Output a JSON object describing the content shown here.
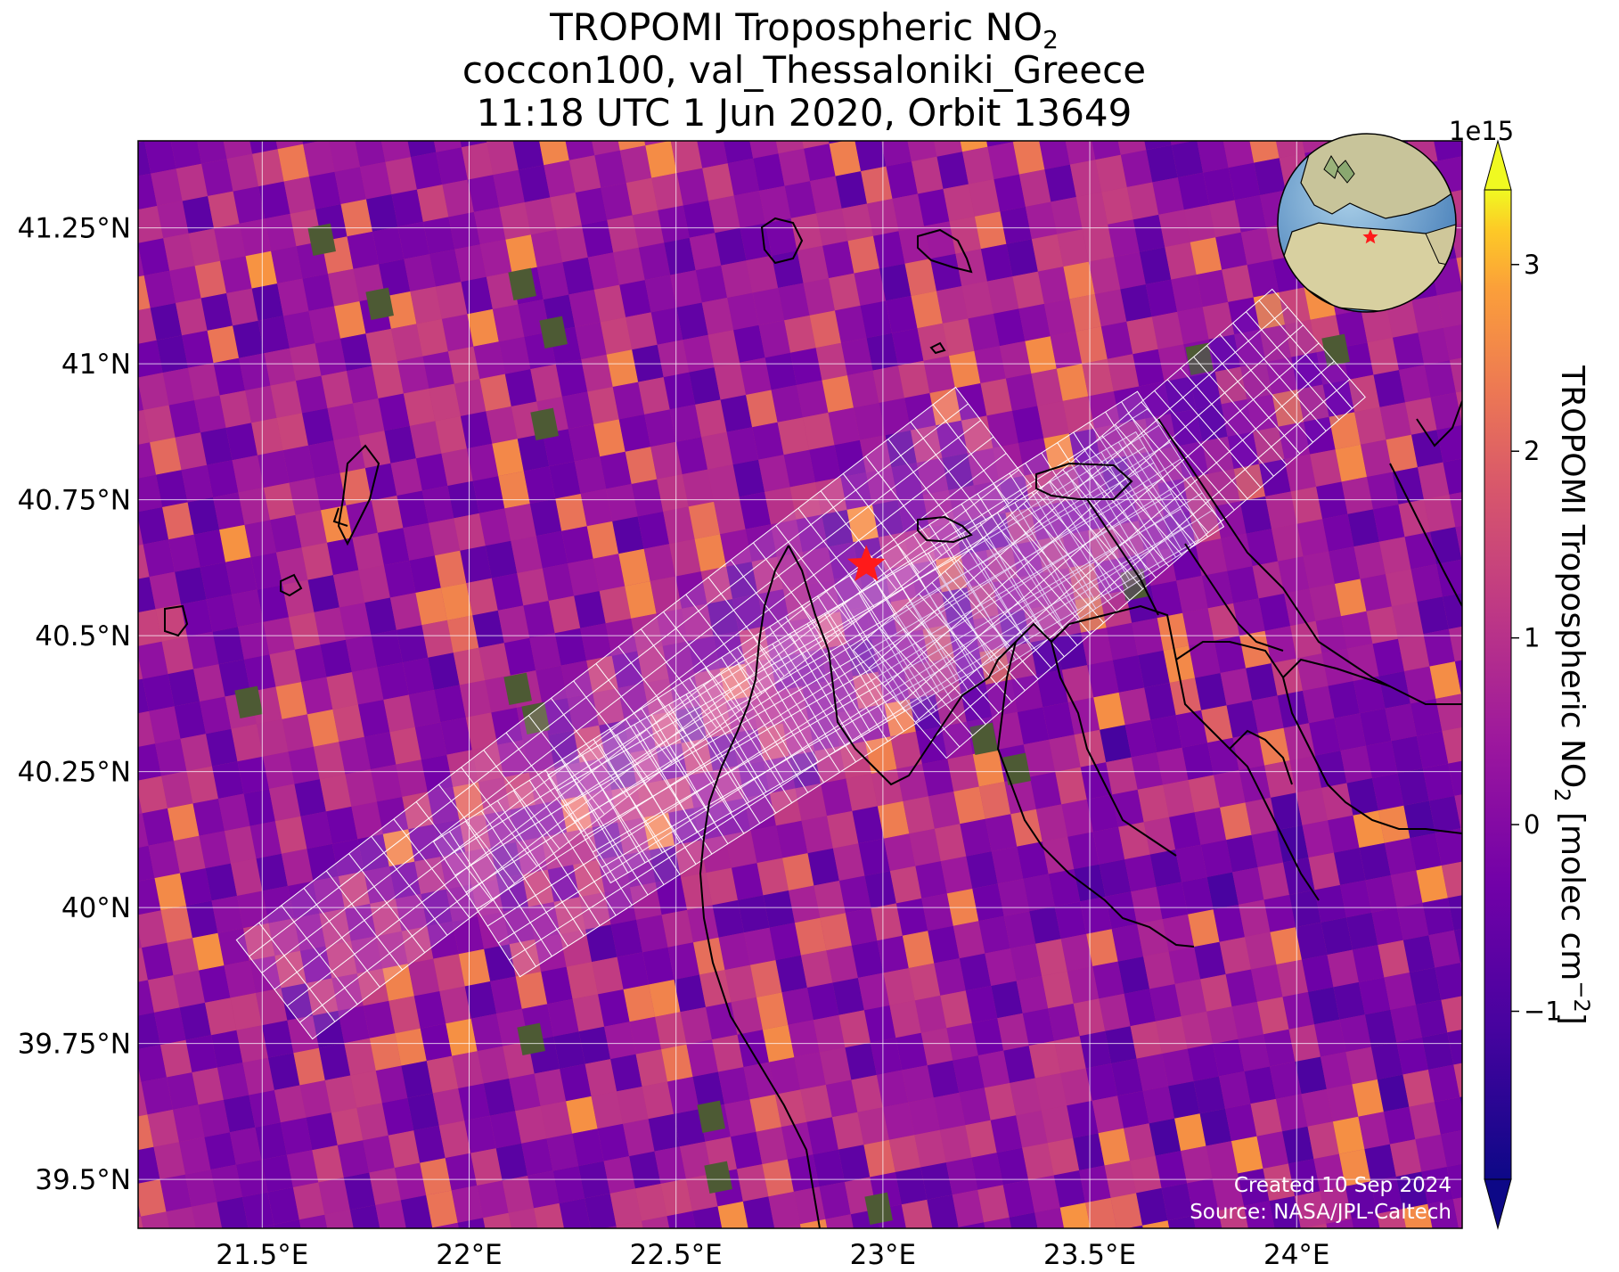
{
  "title": {
    "line1_main": "TROPOMI Tropospheric NO",
    "line1_sub": "2",
    "line2": "coccon100, val_Thessaloniki_Greece",
    "line3": "11:18 UTC 1 Jun 2020, Orbit 13649"
  },
  "map": {
    "lon_range": [
      21.2,
      24.4
    ],
    "lat_range": [
      39.41,
      41.41
    ],
    "lon_ticks": [
      {
        "value": 21.5,
        "label": "21.5°E"
      },
      {
        "value": 22.0,
        "label": "22°E"
      },
      {
        "value": 22.5,
        "label": "22.5°E"
      },
      {
        "value": 23.0,
        "label": "23°E"
      },
      {
        "value": 23.5,
        "label": "23.5°E"
      },
      {
        "value": 24.0,
        "label": "24°E"
      }
    ],
    "lat_ticks": [
      {
        "value": 41.25,
        "label": "41.25°N"
      },
      {
        "value": 41.0,
        "label": "41°N"
      },
      {
        "value": 40.75,
        "label": "40.75°N"
      },
      {
        "value": 40.5,
        "label": "40.5°N"
      },
      {
        "value": 40.25,
        "label": "40.25°N"
      },
      {
        "value": 40.0,
        "label": "40°N"
      },
      {
        "value": 39.75,
        "label": "39.75°N"
      },
      {
        "value": 39.5,
        "label": "39.5°N"
      }
    ],
    "gridlines": true,
    "station_marker": {
      "lon": 22.96,
      "lat": 40.63,
      "color": "#ff1a1a",
      "shape": "star"
    },
    "colormap": "plasma",
    "grid_overlay_color": "#ffffff",
    "coastline_color": "#000000",
    "inset_globe": {
      "position": "top-right",
      "center": "Europe / Mediterranean",
      "marker": "star"
    }
  },
  "colorbar": {
    "exponent_label": "1e15",
    "vmin": -1.9,
    "vmax": 3.4,
    "extend": "both",
    "ticks": [
      {
        "value": -1,
        "label": "−1"
      },
      {
        "value": 0,
        "label": "0"
      },
      {
        "value": 1,
        "label": "1"
      },
      {
        "value": 2,
        "label": "2"
      },
      {
        "value": 3,
        "label": "3"
      }
    ],
    "label_main": "TROPOMI Tropospheric NO",
    "label_sub": "2",
    "label_units": " [molec cm",
    "label_sup": "−2",
    "label_end": "]"
  },
  "credit": {
    "created": "Created 10 Sep 2024",
    "source": "Source: NASA/JPL-Caltech"
  }
}
